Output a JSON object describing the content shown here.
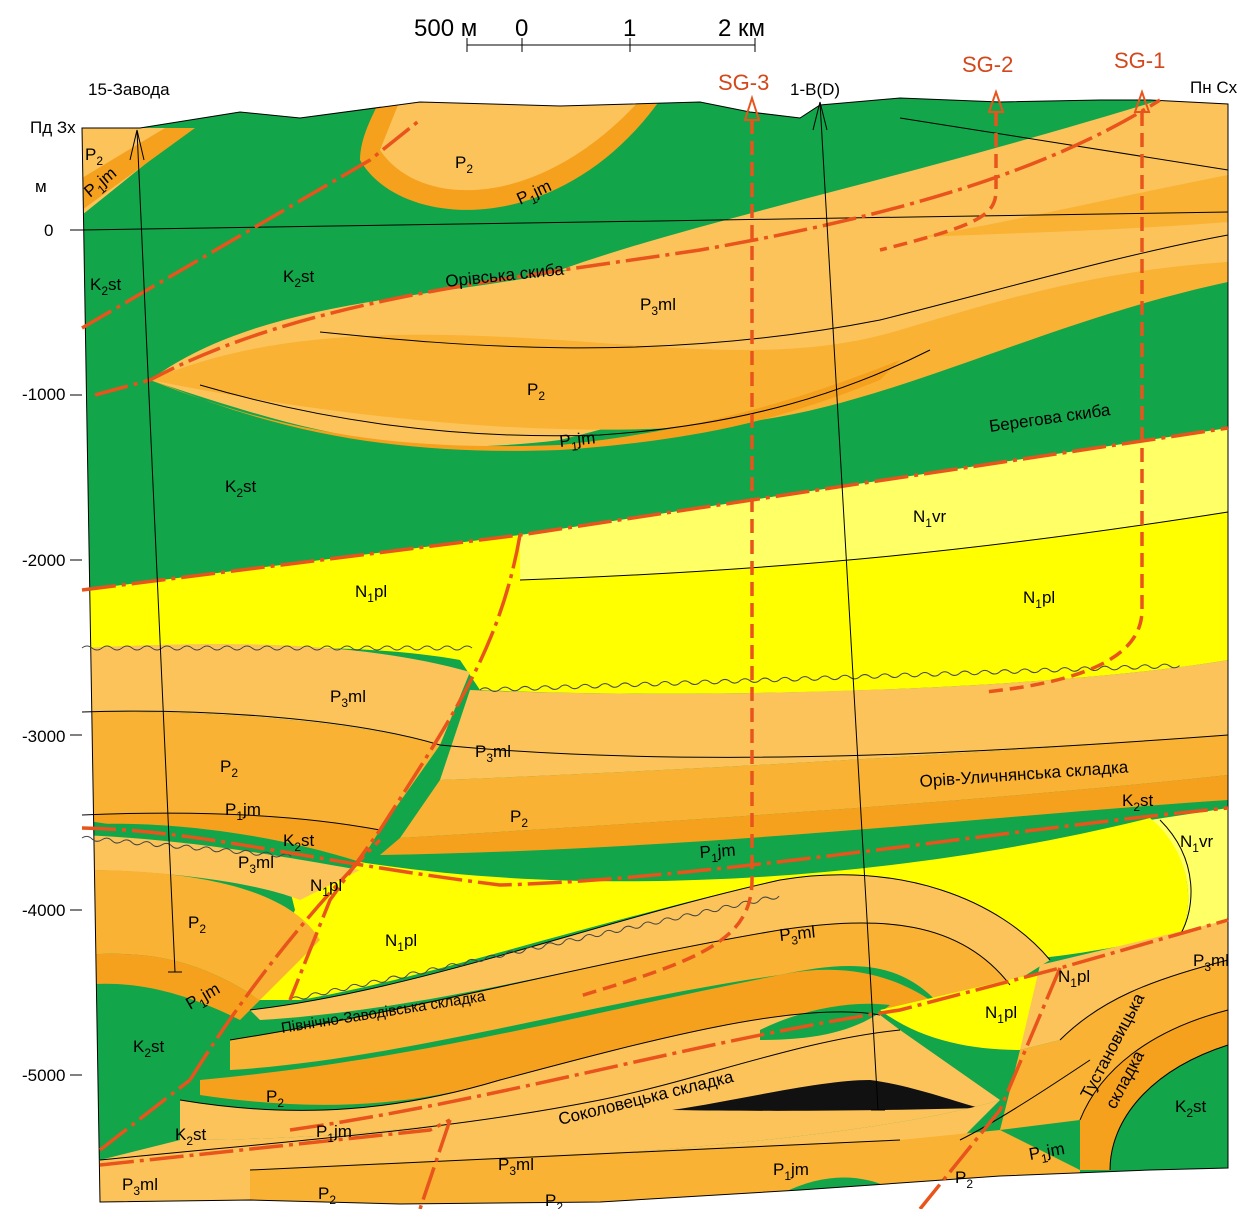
{
  "scale_bar": {
    "label_500m": "500 м",
    "tick_0": "0",
    "tick_1": "1",
    "tick_2": "2 км"
  },
  "directions": {
    "left": "Пд Зх",
    "right": "Пн Сх"
  },
  "axis": {
    "unit": "м",
    "ticks": [
      "0",
      "-1000",
      "-2000",
      "-3000",
      "-4000",
      "-5000"
    ]
  },
  "wells": {
    "w15": "15-Завода",
    "w1b": "1-B(D)",
    "sg3": "SG-3",
    "sg2": "SG-2",
    "sg1": "SG-1"
  },
  "structures": {
    "oriv": "Орівська скиба",
    "beregova": "Берегова скиба",
    "oriv_ulych": "Орів-Уличнянська складка",
    "pivnichno": "Північно-Заводівська складка",
    "sokolovets": "Соколовецька складка",
    "tustan1": "Тустановицька",
    "tustan2": "складка"
  },
  "units": {
    "P2": {
      "base": "P",
      "sub": "2",
      "suf": ""
    },
    "P1jm": {
      "base": "P",
      "sub": "1",
      "suf": "jm"
    },
    "P3ml": {
      "base": "P",
      "sub": "3",
      "suf": "ml"
    },
    "K2st": {
      "base": "K",
      "sub": "2",
      "suf": "st"
    },
    "N1pl": {
      "base": "N",
      "sub": "1",
      "suf": "pl"
    },
    "N1vr": {
      "base": "N",
      "sub": "1",
      "suf": "vr"
    }
  },
  "colors": {
    "k2st": "#12a54a",
    "p_dark": "#f5a11e",
    "p_mid": "#f9b233",
    "p_light": "#fcc35a",
    "n1pl": "#ffff00",
    "n1vr": "#ffff66",
    "fault": "#e8541c",
    "coal": "#111111"
  }
}
